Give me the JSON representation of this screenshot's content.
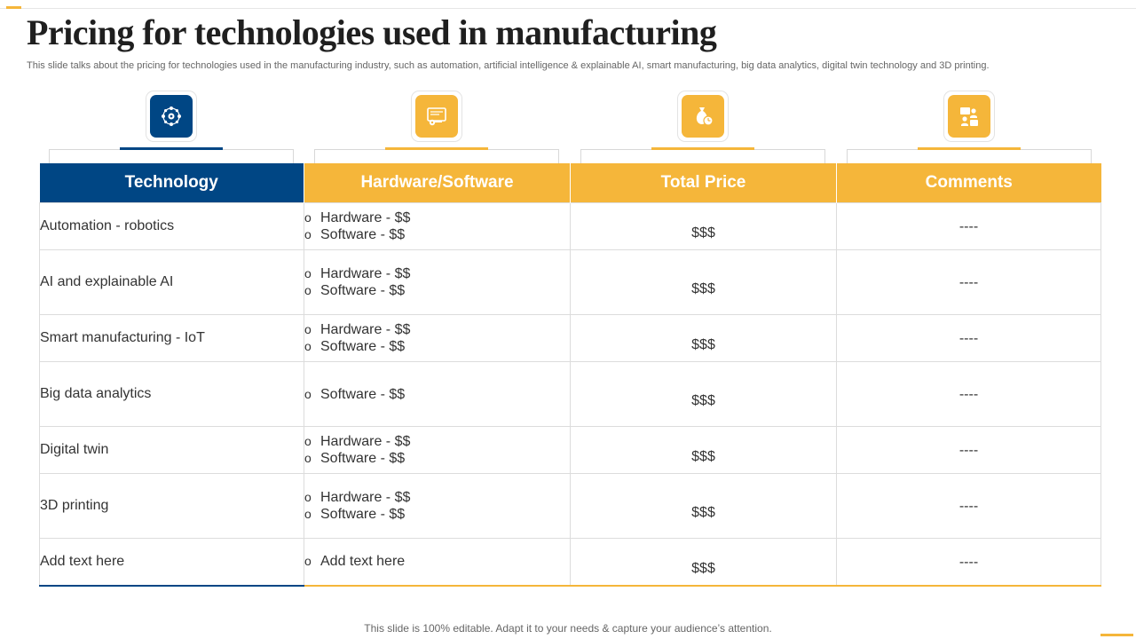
{
  "slide": {
    "title": "Pricing for technologies used in manufacturing",
    "subtitle": "This slide talks about the pricing for technologies used in the manufacturing industry, such as automation, artificial intelligence & explainable AI, smart manufacturing, big data analytics, digital twin technology and 3D printing.",
    "footer": "This slide is 100% editable. Adapt it to your needs & capture your audience’s attention."
  },
  "colors": {
    "navy": "#004684",
    "orange": "#f5b63a",
    "border": "#dcdcdc"
  },
  "icons": [
    "network-gear-icon",
    "monitor-gear-icon",
    "money-bag-clock-icon",
    "people-exchange-icon"
  ],
  "table": {
    "headers": [
      "Technology",
      "Hardware/Software",
      "Total Price",
      "Comments"
    ],
    "rows": [
      {
        "technology": "Automation - robotics",
        "items": [
          "Hardware - $$",
          "Software - $$"
        ],
        "price": "$$$",
        "comment": "----"
      },
      {
        "technology": "AI and explainable AI",
        "items": [
          "Hardware - $$",
          "Software - $$"
        ],
        "price": "$$$",
        "comment": "----"
      },
      {
        "technology": "Smart manufacturing - IoT",
        "items": [
          "Hardware - $$",
          "Software - $$"
        ],
        "price": "$$$",
        "comment": "----"
      },
      {
        "technology": "Big data analytics",
        "items": [
          "Software - $$"
        ],
        "price": "$$$",
        "comment": "----"
      },
      {
        "technology": "Digital twin",
        "items": [
          "Hardware - $$",
          "Software - $$"
        ],
        "price": "$$$",
        "comment": "----"
      },
      {
        "technology": "3D printing",
        "items": [
          "Hardware - $$",
          "Software - $$"
        ],
        "price": "$$$",
        "comment": "----"
      },
      {
        "technology": "Add text here",
        "items": [
          "Add text here"
        ],
        "price": "$$$",
        "comment": "----"
      }
    ]
  }
}
